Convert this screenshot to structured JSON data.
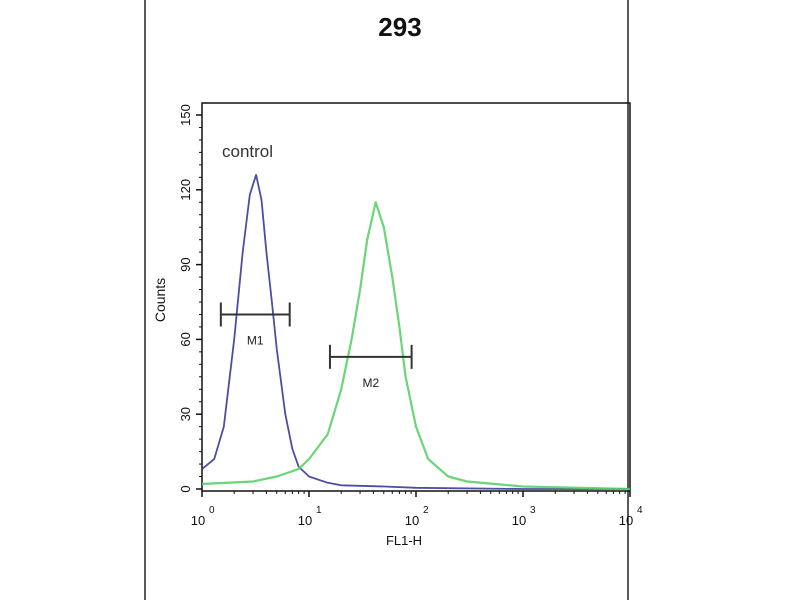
{
  "chart_data": {
    "type": "line",
    "title": "293",
    "xlabel": "FL1-H",
    "ylabel": "Counts",
    "x_scale": "log",
    "xlim": [
      1,
      10000
    ],
    "ylim": [
      0,
      150
    ],
    "y_ticks": [
      0,
      30,
      60,
      90,
      120,
      150
    ],
    "x_ticks": [
      {
        "base": "10",
        "exp": "0"
      },
      {
        "base": "10",
        "exp": "1"
      },
      {
        "base": "10",
        "exp": "2"
      },
      {
        "base": "10",
        "exp": "3"
      },
      {
        "base": "10",
        "exp": "4"
      }
    ],
    "grid": false,
    "annotation": "control",
    "series": [
      {
        "color": "#3a3a9a",
        "x": [
          1,
          1.3,
          1.6,
          2,
          2.4,
          2.8,
          3.2,
          3.6,
          4,
          4.5,
          5,
          6,
          7,
          8,
          10,
          15,
          20,
          50,
          100,
          1000,
          10000
        ],
        "y": [
          8,
          12,
          25,
          60,
          95,
          118,
          126,
          116,
          95,
          75,
          56,
          30,
          16,
          9,
          5,
          2.5,
          1.5,
          1,
          0.5,
          0,
          0
        ]
      },
      {
        "color": "#5ad06a",
        "x": [
          1,
          3,
          5,
          8,
          10,
          15,
          20,
          25,
          30,
          35,
          42,
          50,
          60,
          70,
          80,
          100,
          130,
          200,
          300,
          1000,
          10000
        ],
        "y": [
          2,
          3,
          5,
          8,
          12,
          22,
          40,
          60,
          80,
          100,
          115,
          105,
          85,
          65,
          45,
          25,
          12,
          5,
          3,
          1,
          0
        ]
      }
    ],
    "markers": [
      {
        "label": "M1",
        "x_range": [
          1.5,
          6.6
        ],
        "y": 70
      },
      {
        "label": "M2",
        "x_range": [
          15.7,
          91
        ],
        "y": 53
      }
    ]
  }
}
